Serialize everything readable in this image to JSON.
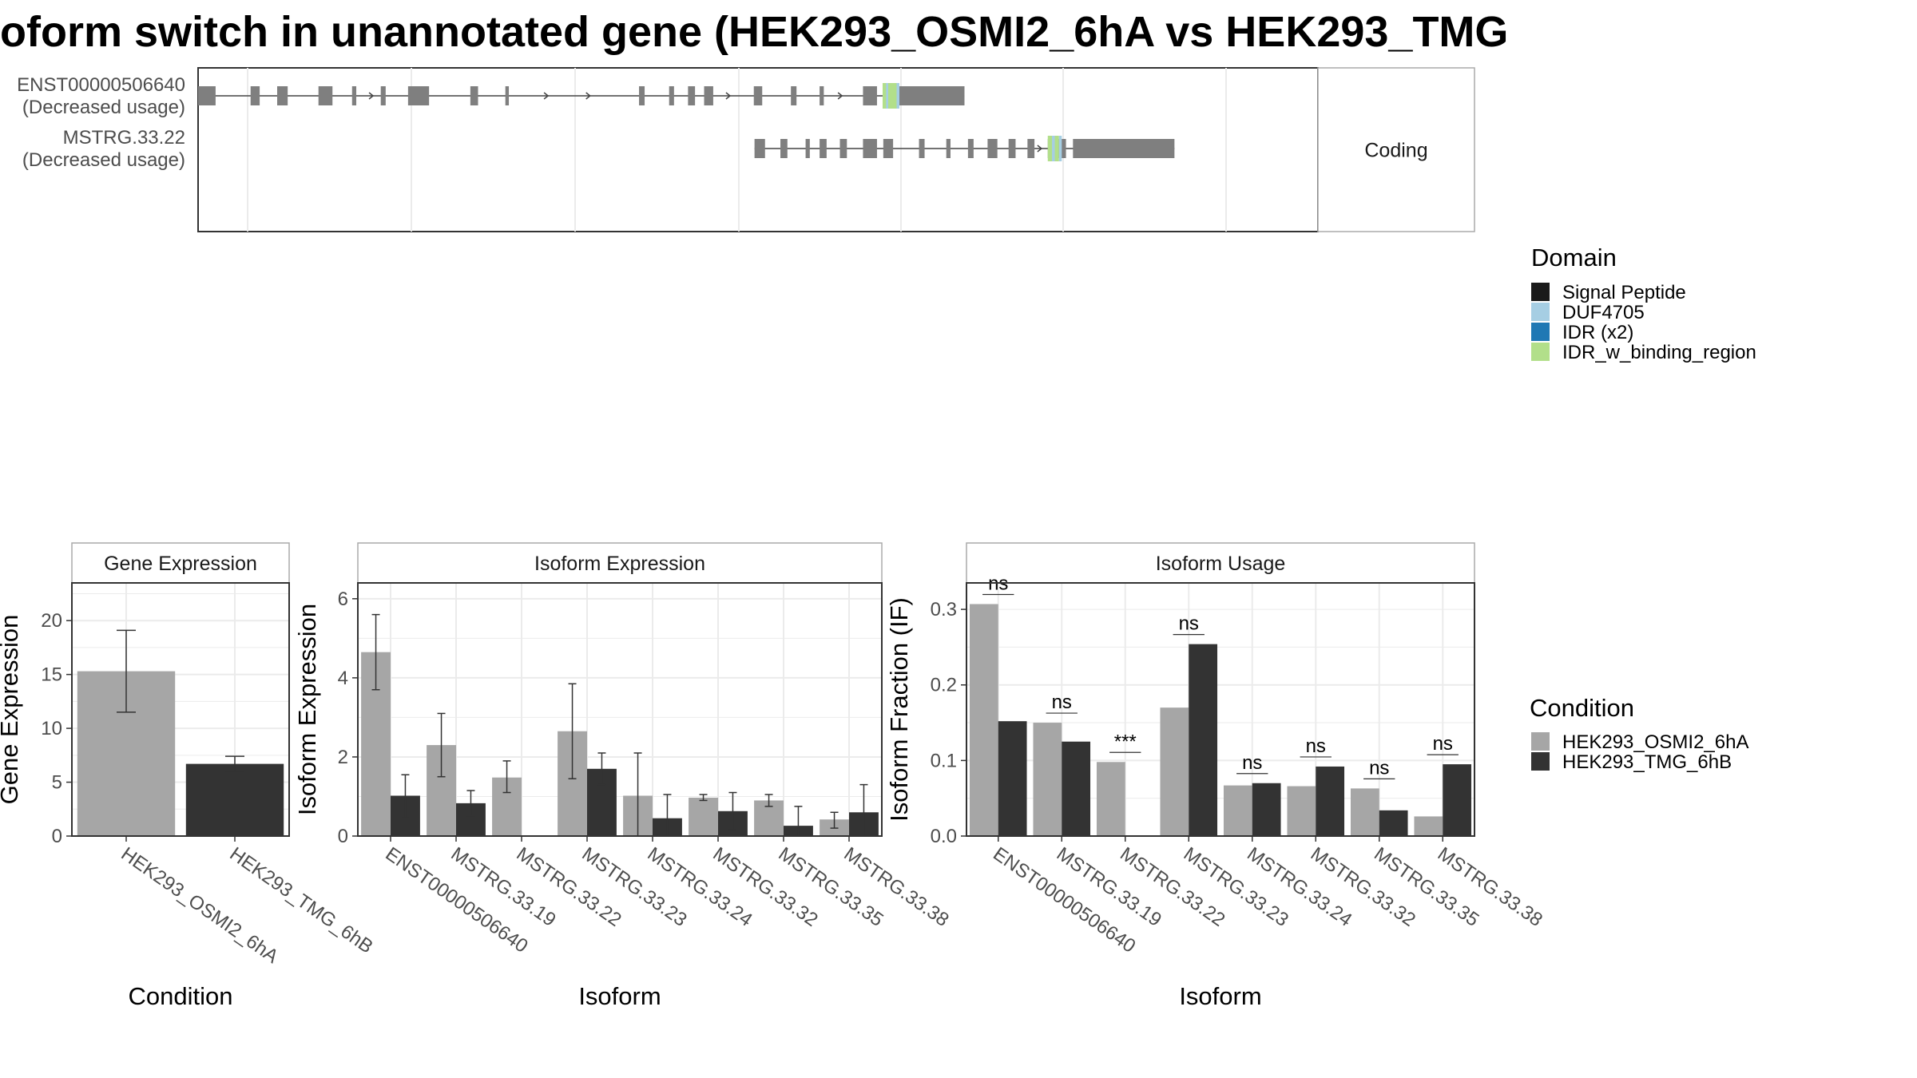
{
  "title": "oform switch in unannotated gene (HEK293_OSMI2_6hA vs HEK293_TMG",
  "colors": {
    "intron": "#444444",
    "exon": "#7f7f7f",
    "cond1": "#a6a6a6",
    "cond2": "#333333",
    "panel_border": "#333333",
    "strip_border": "#aaaaaa",
    "grid": "#ebebeb"
  },
  "structure": {
    "x_domain": [
      0,
      1000
    ],
    "panels": [
      {
        "label": "Coding",
        "rows": [
          {
            "name": "ENST00000506640",
            "usage": "(Decreased usage)",
            "exons": [
              [
                0,
                25
              ],
              [
                75,
                88
              ],
              [
                113,
                128
              ],
              [
                172,
                192
              ],
              [
                220,
                226
              ],
              [
                261,
                268
              ],
              [
                300,
                330
              ],
              [
                389,
                400
              ],
              [
                439,
                444
              ],
              [
                630,
                638
              ],
              [
                673,
                680
              ],
              [
                700,
                710
              ],
              [
                723,
                736
              ],
              [
                794,
                806
              ],
              [
                847,
                855
              ],
              [
                888,
                894
              ],
              [
                950,
                970
              ],
              [
                980,
                1095
              ]
            ],
            "arrows": [
              250,
              500,
              560,
              760,
              920
            ],
            "domains": [
              [
                978,
                998,
                "IDR_w_binding_region"
              ],
              [
                983,
                986,
                "DUF4705"
              ],
              [
                998,
                1002,
                "DUF4705"
              ]
            ]
          },
          {
            "name": "MSTRG.33.22",
            "usage": "(Decreased usage)",
            "exons": [
              [
                795,
                810
              ],
              [
                832,
                842
              ],
              [
                868,
                874
              ],
              [
                888,
                898
              ],
              [
                917,
                927
              ],
              [
                950,
                970
              ],
              [
                979,
                993
              ],
              [
                1030,
                1038
              ],
              [
                1069,
                1075
              ],
              [
                1100,
                1108
              ],
              [
                1128,
                1142
              ],
              [
                1158,
                1168
              ],
              [
                1185,
                1195
              ],
              [
                1214,
                1240
              ],
              [
                1250,
                1395
              ]
            ],
            "arrows": [
              1205
            ],
            "domains": [
              [
                1214,
                1230,
                "IDR_w_binding_region"
              ],
              [
                1220,
                1224,
                "DUF4705"
              ],
              [
                1230,
                1234,
                "DUF4705"
              ]
            ]
          }
        ]
      }
    ]
  },
  "legend_domain": {
    "title": "Domain",
    "items": [
      {
        "label": "Signal Peptide",
        "color": "#1a1a1a"
      },
      {
        "label": "DUF4705",
        "color": "#a6cee3"
      },
      {
        "label": "IDR (x2)",
        "color": "#1f78b4"
      },
      {
        "label": "IDR_w_binding_region",
        "color": "#b2df8a"
      }
    ]
  },
  "legend_condition": {
    "title": "Condition",
    "items": [
      {
        "label": "HEK293_OSMI2_6hA",
        "color": "#a6a6a6"
      },
      {
        "label": "HEK293_TMG_6hB",
        "color": "#333333"
      }
    ]
  },
  "chart_data": [
    {
      "type": "bar",
      "title": "Gene Expression",
      "xlabel": "Condition",
      "ylabel": "Gene Expression",
      "ylim": [
        0,
        23.5
      ],
      "yticks": [
        0,
        5,
        10,
        15,
        20
      ],
      "categories": [
        "HEK293_OSMI2_6hA",
        "HEK293_TMG_6hB"
      ],
      "values": [
        15.3,
        6.7
      ],
      "errors": [
        [
          11.5,
          19.1
        ],
        [
          6.0,
          7.4
        ]
      ]
    },
    {
      "type": "bar",
      "title": "Isoform Expression",
      "xlabel": "Isoform",
      "ylabel": "Isoform Expression",
      "ylim": [
        0,
        6.4
      ],
      "yticks": [
        0,
        2,
        4,
        6
      ],
      "categories": [
        "ENST00000506640",
        "MSTRG.33.19",
        "MSTRG.33.22",
        "MSTRG.33.23",
        "MSTRG.33.24",
        "MSTRG.33.32",
        "MSTRG.33.35",
        "MSTRG.33.38"
      ],
      "series": [
        {
          "name": "HEK293_OSMI2_6hA",
          "values": [
            4.65,
            2.3,
            1.48,
            2.65,
            1.02,
            0.97,
            0.9,
            0.42
          ],
          "errors": [
            [
              3.7,
              5.6
            ],
            [
              1.5,
              3.1
            ],
            [
              1.1,
              1.9
            ],
            [
              1.45,
              3.85
            ],
            [
              0.0,
              2.1
            ],
            [
              0.9,
              1.05
            ],
            [
              0.75,
              1.05
            ],
            [
              0.2,
              0.6
            ]
          ]
        },
        {
          "name": "HEK293_TMG_6hB",
          "values": [
            1.02,
            0.83,
            0.0,
            1.7,
            0.45,
            0.63,
            0.26,
            0.6
          ],
          "errors": [
            [
              0.45,
              1.55
            ],
            [
              0.5,
              1.15
            ],
            [
              0.0,
              0.0
            ],
            [
              1.3,
              2.1
            ],
            [
              0.0,
              1.05
            ],
            [
              0.15,
              1.1
            ],
            [
              0.0,
              0.75
            ],
            [
              0.0,
              1.3
            ]
          ]
        }
      ]
    },
    {
      "type": "bar",
      "title": "Isoform Usage",
      "xlabel": "Isoform",
      "ylabel": "Isoform Fraction (IF)",
      "ylim": [
        0,
        0.335
      ],
      "yticks": [
        0.0,
        0.1,
        0.2,
        0.3
      ],
      "ytick_labels": [
        "0.0",
        "0.1",
        "0.2",
        "0.3"
      ],
      "categories": [
        "ENST00000506640",
        "MSTRG.33.19",
        "MSTRG.33.22",
        "MSTRG.33.23",
        "MSTRG.33.24",
        "MSTRG.33.32",
        "MSTRG.33.35",
        "MSTRG.33.38"
      ],
      "series": [
        {
          "name": "HEK293_OSMI2_6hA",
          "values": [
            0.307,
            0.15,
            0.098,
            0.17,
            0.067,
            0.066,
            0.063,
            0.026
          ]
        },
        {
          "name": "HEK293_TMG_6hB",
          "values": [
            0.152,
            0.125,
            0.0,
            0.254,
            0.07,
            0.092,
            0.034,
            0.095
          ]
        }
      ],
      "significance": [
        "ns",
        "ns",
        "***",
        "ns",
        "ns",
        "ns",
        "ns",
        "ns"
      ]
    }
  ]
}
